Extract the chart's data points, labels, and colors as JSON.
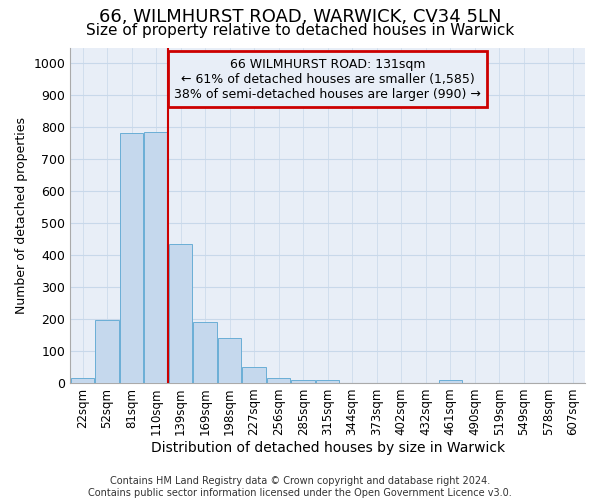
{
  "title1": "66, WILMHURST ROAD, WARWICK, CV34 5LN",
  "title2": "Size of property relative to detached houses in Warwick",
  "xlabel": "Distribution of detached houses by size in Warwick",
  "ylabel": "Number of detached properties",
  "categories": [
    "22sqm",
    "52sqm",
    "81sqm",
    "110sqm",
    "139sqm",
    "169sqm",
    "198sqm",
    "227sqm",
    "256sqm",
    "285sqm",
    "315sqm",
    "344sqm",
    "373sqm",
    "402sqm",
    "432sqm",
    "461sqm",
    "490sqm",
    "519sqm",
    "549sqm",
    "578sqm",
    "607sqm"
  ],
  "values": [
    15,
    197,
    783,
    787,
    435,
    192,
    140,
    50,
    15,
    10,
    10,
    0,
    0,
    0,
    0,
    10,
    0,
    0,
    0,
    0,
    0
  ],
  "bar_color": "#c5d8ed",
  "bar_edgecolor": "#6aaed6",
  "bar_linewidth": 0.7,
  "marker_color": "#cc0000",
  "ylim": [
    0,
    1050
  ],
  "yticks": [
    0,
    100,
    200,
    300,
    400,
    500,
    600,
    700,
    800,
    900,
    1000
  ],
  "annotation_title": "66 WILMHURST ROAD: 131sqm",
  "annotation_line1": "← 61% of detached houses are smaller (1,585)",
  "annotation_line2": "38% of semi-detached houses are larger (990) →",
  "annotation_box_edgecolor": "#cc0000",
  "grid_color": "#c8d8ea",
  "bg_color": "#ffffff",
  "plot_bg_color": "#e8eef7",
  "footer": "Contains HM Land Registry data © Crown copyright and database right 2024.\nContains public sector information licensed under the Open Government Licence v3.0.",
  "title1_fontsize": 13,
  "title2_fontsize": 11,
  "xlabel_fontsize": 10,
  "ylabel_fontsize": 9,
  "tick_fontsize": 8.5,
  "annotation_fontsize": 9,
  "footer_fontsize": 7
}
